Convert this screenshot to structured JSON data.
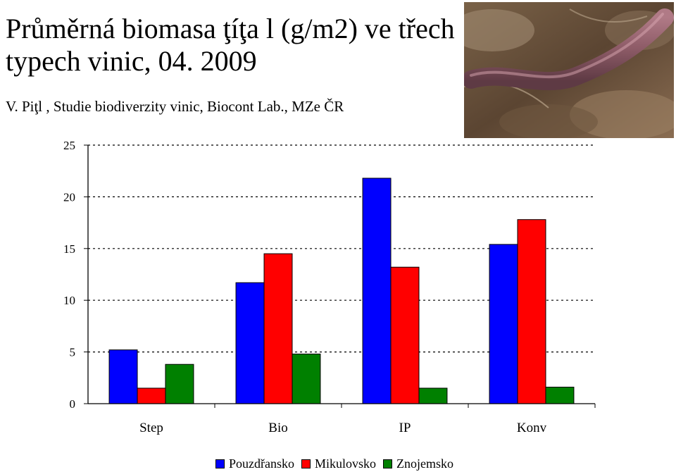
{
  "header": {
    "title": "Průměrná biomasa ţíţa l (g/m2) ve třech typech vinic, 04. 2009",
    "subtitle": "V. Piţl , Studie biodiverzity vinic, Biocont Lab., MZe ČR"
  },
  "photo": {
    "icon": "earthworm-photo"
  },
  "chart_data": {
    "type": "bar",
    "title": "Průměrná biomasa ţíţa l (g/m2) ve třech typech vinic, 04. 2009",
    "subtitle": "V. Piţl , Studie biodiverzity vinic, Biocont Lab., MZe ČR",
    "categories": [
      "Step",
      "Bio",
      "IP",
      "Konv"
    ],
    "series": [
      {
        "name": "Pouzdřansko",
        "color": "#0000ff",
        "values": [
          5.2,
          11.7,
          21.8,
          15.4
        ]
      },
      {
        "name": "Mikulovsko",
        "color": "#ff0000",
        "values": [
          1.5,
          14.5,
          13.2,
          17.8
        ]
      },
      {
        "name": "Znojemsko",
        "color": "#008000",
        "values": [
          3.8,
          4.8,
          1.5,
          1.6
        ]
      }
    ],
    "ylim": [
      0,
      25
    ],
    "yticks": [
      0,
      5,
      10,
      15,
      20,
      25
    ],
    "grid": true,
    "legend": "bottom"
  }
}
